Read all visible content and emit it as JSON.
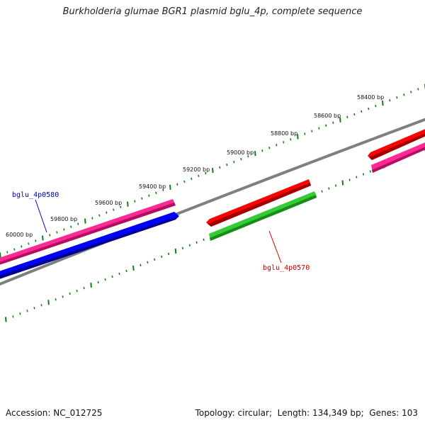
{
  "title": "Burkholderia glumae BGR1 plasmid bglu_4p, complete sequence",
  "footer": {
    "accession_label": "Accession:",
    "accession": "NC_012725",
    "topology_label": "Topology:",
    "topology": "circular",
    "length_label": "Length:",
    "length": "134,349 bp",
    "genes_label": "Genes:",
    "genes": "103"
  },
  "scale": {
    "unit": "bp",
    "labels": [
      "58400 bp",
      "58600 bp",
      "58800 bp",
      "59000 bp",
      "59200 bp",
      "59400 bp",
      "59600 bp",
      "59800 bp",
      "60000 bp"
    ]
  },
  "genes": [
    {
      "label": "bglu_4p0580",
      "color": "#0000aa"
    },
    {
      "label": "bglu_4p0570",
      "color": "#cc0000"
    }
  ],
  "colors": {
    "backbone": "#7f7f7f",
    "tick": "#1a7a1a",
    "forward_cds": "#ff0000",
    "forward_feature": "#ff2090",
    "reverse_cds": "#0000ff",
    "reverse_feature": "#22cc22"
  }
}
